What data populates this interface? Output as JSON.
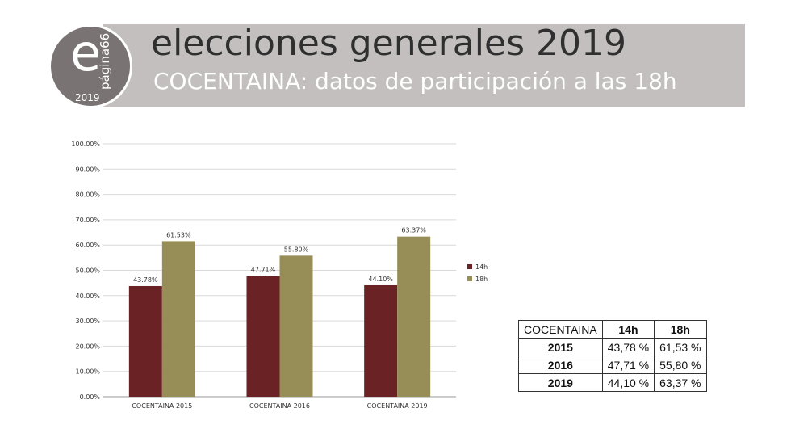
{
  "header": {
    "title": "elecciones generales 2019",
    "subtitle": "COCENTAINA: datos de participación a las 18h",
    "logo_letter": "e",
    "logo_word": "página66",
    "logo_year": "2019"
  },
  "chart_data": {
    "type": "bar",
    "categories": [
      "COCENTAINA 2015",
      "COCENTAINA 2016",
      "COCENTAINA 2019"
    ],
    "series": [
      {
        "name": "14h",
        "color": "#6a2224",
        "values": [
          43.78,
          47.71,
          44.1
        ],
        "labels": [
          "43.78%",
          "47.71%",
          "44.10%"
        ]
      },
      {
        "name": "18h",
        "color": "#978d56",
        "values": [
          61.53,
          55.8,
          63.37
        ],
        "labels": [
          "61.53%",
          "55.80%",
          "63.37%"
        ]
      }
    ],
    "ylim": [
      0,
      100
    ],
    "yticks": [
      "0.00%",
      "10.00%",
      "20.00%",
      "30.00%",
      "40.00%",
      "50.00%",
      "60.00%",
      "70.00%",
      "80.00%",
      "90.00%",
      "100.00%"
    ],
    "grid": true,
    "legend_position": "right"
  },
  "table": {
    "header": [
      "COCENTAINA",
      "14h",
      "18h"
    ],
    "rows": [
      {
        "year": "2015",
        "h14": "43,78 %",
        "h18": "61,53 %"
      },
      {
        "year": "2016",
        "h14": "47,71 %",
        "h18": "55,80 %"
      },
      {
        "year": "2019",
        "h14": "44,10 %",
        "h18": "63,37 %"
      }
    ]
  }
}
